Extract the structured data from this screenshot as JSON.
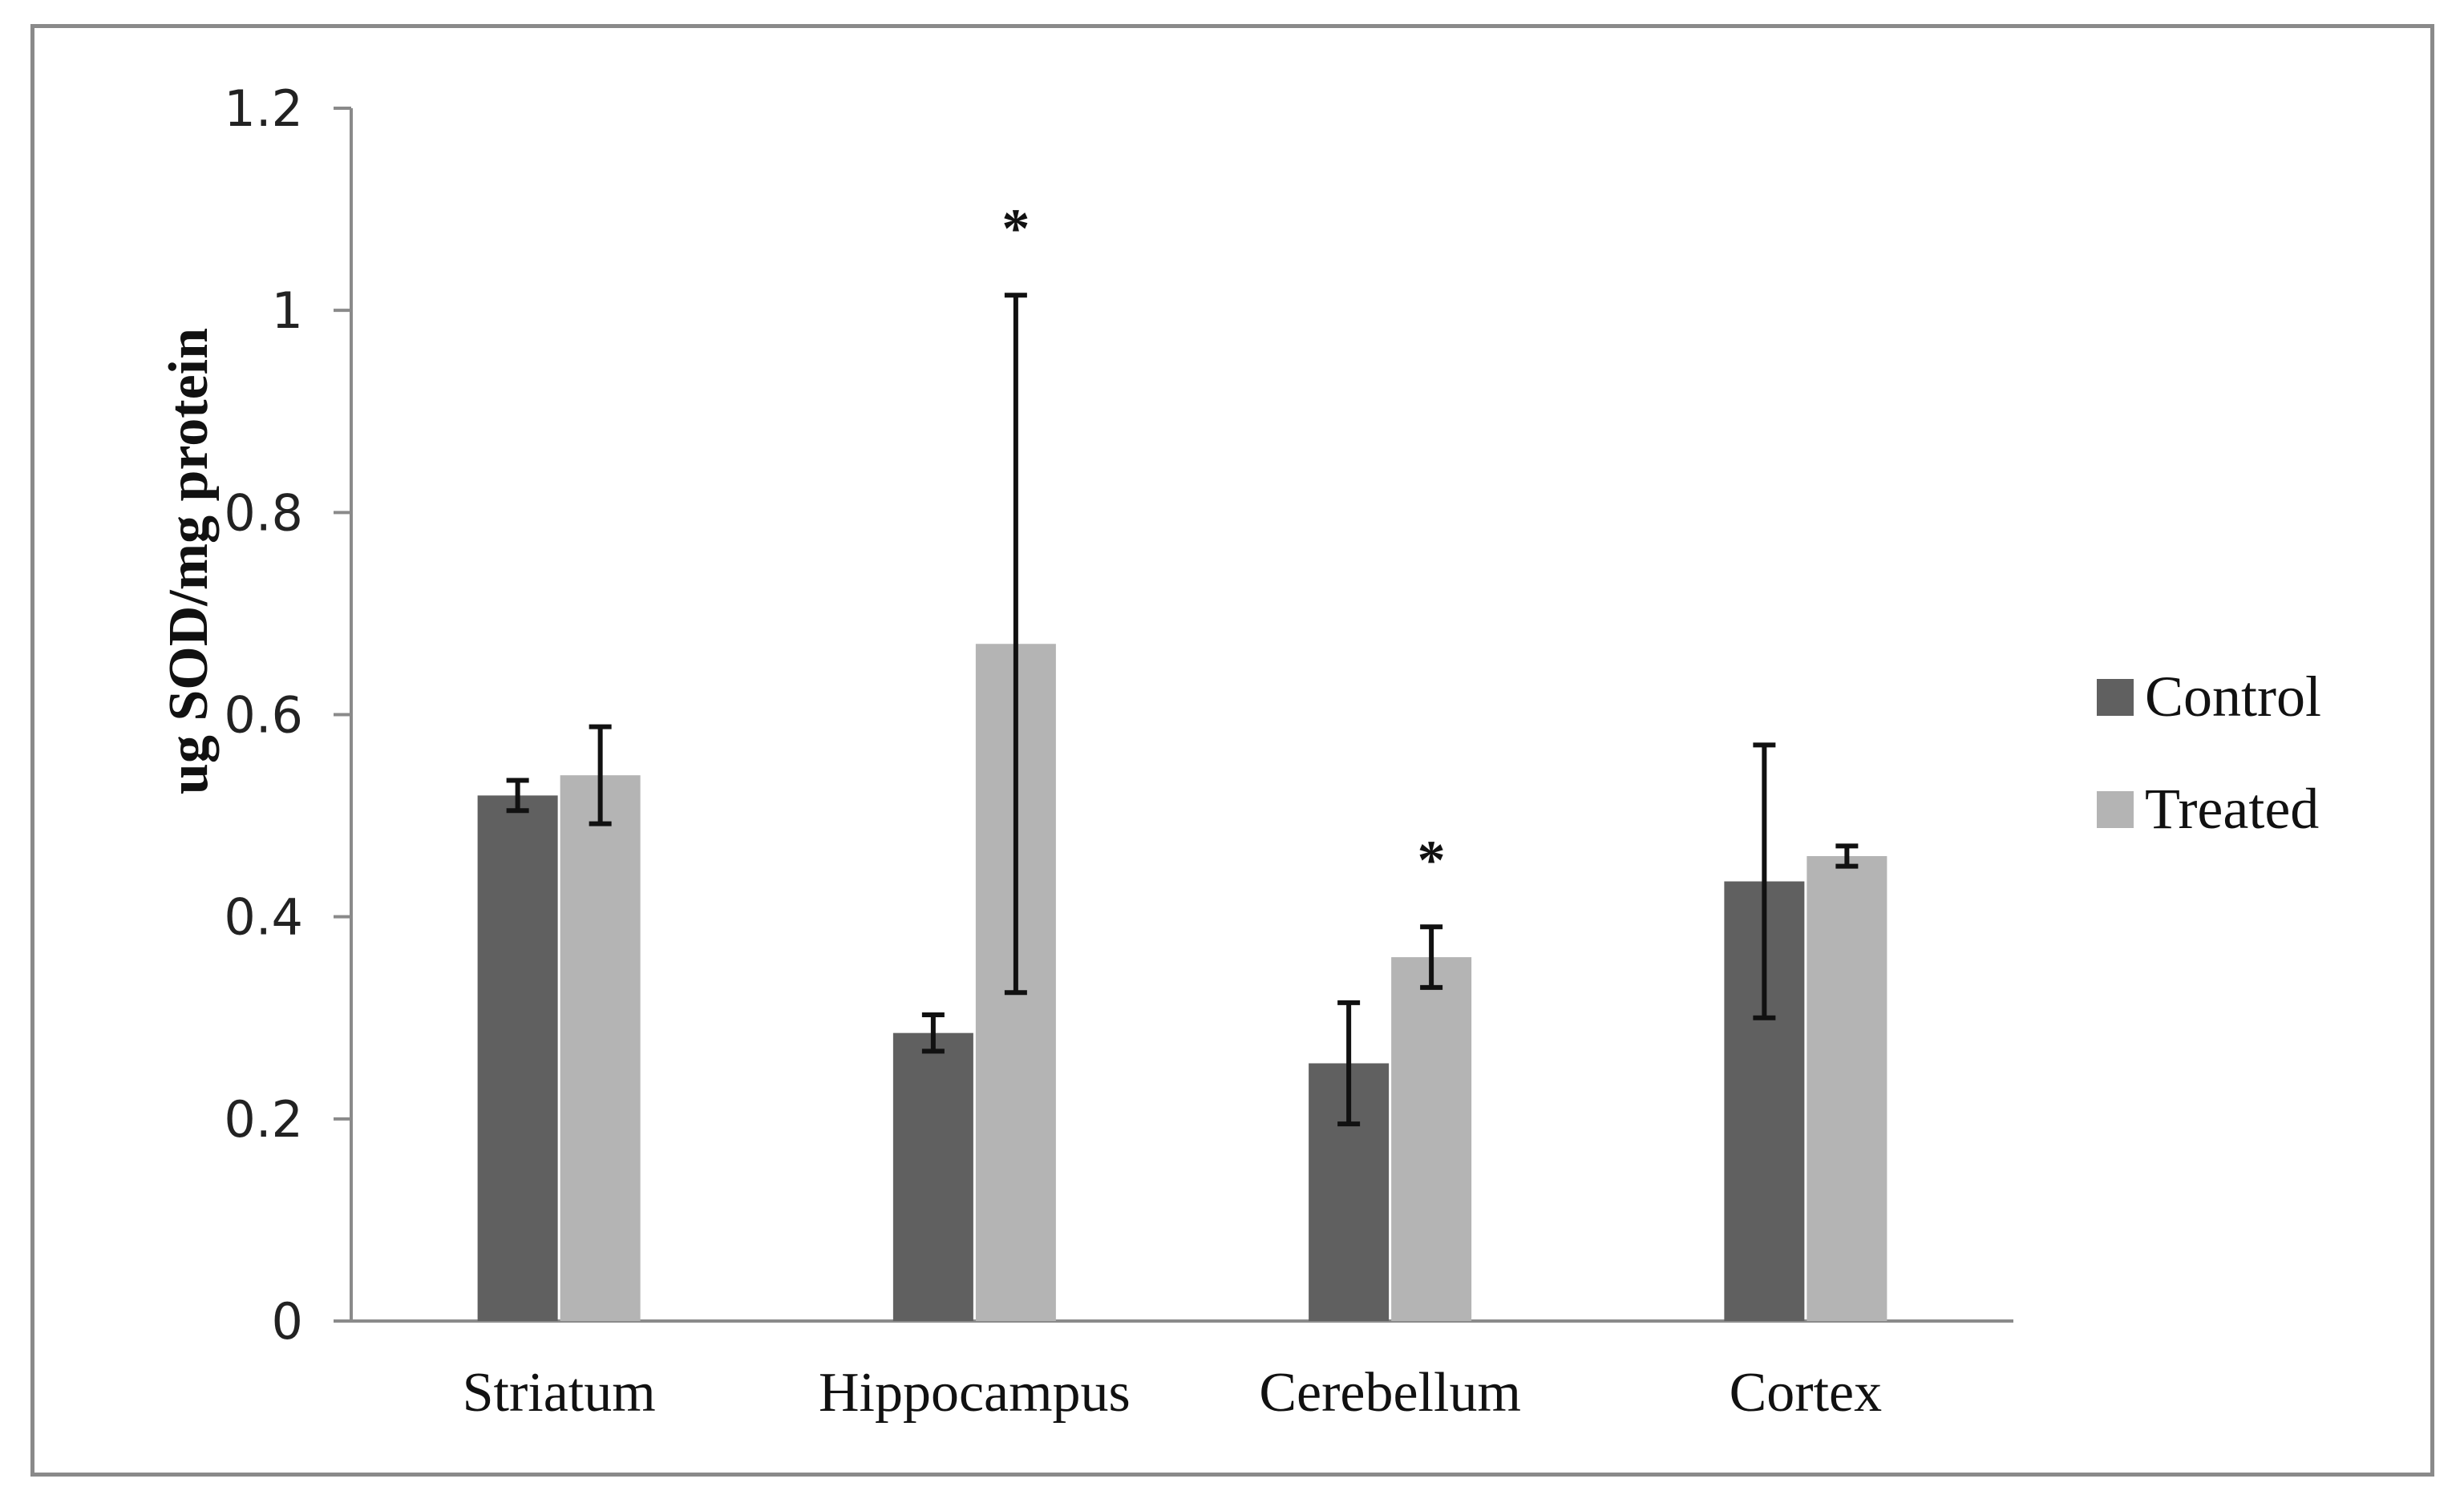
{
  "chart_data": {
    "type": "bar",
    "title": "",
    "xlabel": "",
    "ylabel": "ug SOD/mg protein",
    "ylim": [
      0,
      1.2
    ],
    "yticks": [
      "0",
      "0.2",
      "0.4",
      "0.6",
      "0.8",
      "1",
      "1.2"
    ],
    "categories": [
      "Striatum",
      "Hippocampus",
      "Cerebellum",
      "Cortex"
    ],
    "series": [
      {
        "name": "Control",
        "color": "#606060",
        "values": [
          0.52,
          0.285,
          0.255,
          0.435
        ],
        "errors": [
          0.015,
          0.018,
          0.06,
          0.135
        ]
      },
      {
        "name": "Treated",
        "color": "#b4b4b4",
        "values": [
          0.54,
          0.67,
          0.36,
          0.46
        ],
        "errors": [
          0.048,
          0.345,
          0.03,
          0.01
        ]
      }
    ],
    "annotations": [
      {
        "category": "Hippocampus",
        "series": "Treated",
        "text": "*"
      },
      {
        "category": "Cerebellum",
        "series": "Treated",
        "text": "*"
      }
    ],
    "legend": {
      "position": "right",
      "entries": [
        "Control",
        "Treated"
      ]
    },
    "grid": false
  }
}
